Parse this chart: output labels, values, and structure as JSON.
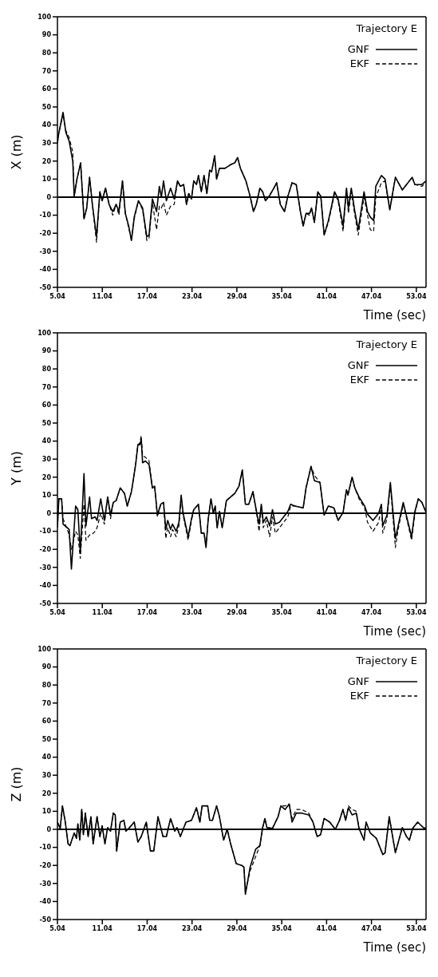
{
  "chart_data": [
    {
      "type": "line",
      "legend_title": "Trajectory E",
      "xlabel": "Time (sec)",
      "ylabel": "X (m)",
      "legend": "top right",
      "marker": "none",
      "xlim": [
        5.04,
        54.34
      ],
      "ylim": [
        -50,
        100
      ],
      "xticks": [
        5.04,
        11.04,
        17.04,
        23.04,
        29.04,
        35.04,
        41.04,
        47.04,
        53.04
      ],
      "yticks": [
        -50,
        -40,
        -30,
        -20,
        -10,
        0,
        10,
        20,
        30,
        40,
        50,
        60,
        70,
        80,
        90,
        100
      ],
      "ref_lines": [
        {
          "axis": "y",
          "value": 0,
          "color": "#000000"
        }
      ],
      "x": [
        5.04,
        5.2,
        5.79,
        6.16,
        6.61,
        7.09,
        7.28,
        7.65,
        8.14,
        8.59,
        8.96,
        9.34,
        9.71,
        10.27,
        10.72,
        11.02,
        11.47,
        11.95,
        12.44,
        12.89,
        13.26,
        13.74,
        14.12,
        14.57,
        14.94,
        15.31,
        15.87,
        16.43,
        16.99,
        17.29,
        17.74,
        18.3,
        18.67,
        18.94,
        19.23,
        19.61,
        20.17,
        20.66,
        21.1,
        21.48,
        21.92,
        22.3,
        22.6,
        22.97,
        23.27,
        23.64,
        23.9,
        24.28,
        24.65,
        25.03,
        25.4,
        25.66,
        26.07,
        26.33,
        26.71,
        27.45,
        28.2,
        28.76,
        29.13,
        29.51,
        30.25,
        30.81,
        31.26,
        31.63,
        32.12,
        32.49,
        32.86,
        33.43,
        33.99,
        34.36,
        34.85,
        35.41,
        35.86,
        36.42,
        36.98,
        37.54,
        37.91,
        38.29,
        38.77,
        39.03,
        39.41,
        39.86,
        40.27,
        40.71,
        41.28,
        41.65,
        42.1,
        42.58,
        43.25,
        43.7,
        43.96,
        44.34,
        44.82,
        45.27,
        46.05,
        46.51,
        46.88,
        47.33,
        47.62,
        48.37,
        48.86,
        49.49,
        50.24,
        51.17,
        52.48,
        52.85,
        53.79,
        54.34
      ],
      "series": [
        {
          "name": "GNF",
          "color": "#000000",
          "line_style": "solid",
          "values": [
            30,
            35,
            47,
            36,
            31,
            20,
            0.5,
            10,
            19,
            -12,
            -6,
            11,
            -4,
            -22,
            3,
            -2,
            5,
            -4,
            -8,
            -4,
            -8,
            9,
            -9,
            -16,
            -24,
            -11,
            -2,
            -6,
            -22,
            -21,
            -1,
            -8,
            6,
            0,
            9,
            -2,
            5,
            -1,
            9,
            6,
            7,
            -4,
            2,
            -1,
            9,
            7,
            12,
            3,
            12,
            2,
            15,
            14,
            23,
            10,
            16,
            16,
            18,
            19,
            22,
            16,
            9,
            0.5,
            -8,
            -4,
            5,
            3,
            -2,
            1,
            5,
            8,
            -4,
            -8,
            0.5,
            8,
            7,
            -8,
            -16,
            -9,
            -9,
            -6,
            -14,
            3,
            0.5,
            -21,
            -13,
            -6,
            3,
            -1,
            -16,
            5,
            -6,
            5,
            -8,
            -18,
            3,
            -8,
            -11,
            -13,
            6,
            12,
            10,
            -7,
            11,
            4,
            11,
            7,
            7,
            9
          ]
        },
        {
          "name": "EKF",
          "color": "#000000",
          "line_style": "dashed",
          "values": [
            30,
            35,
            46,
            37,
            33,
            25,
            0.5,
            10,
            19,
            -12,
            -6,
            11,
            -4,
            -25,
            3,
            -2,
            5,
            -4,
            -10,
            -4,
            -10,
            9,
            -9,
            -17,
            -24,
            -12,
            -2,
            -7,
            -24,
            -23,
            -3,
            -18,
            -5,
            -6,
            -3,
            -10,
            -5,
            -4,
            9,
            6,
            7,
            -4,
            2,
            -1,
            9,
            7,
            12,
            3,
            12,
            2,
            15,
            14,
            23,
            10,
            16,
            16,
            18,
            19,
            22,
            16,
            9,
            0.5,
            -8,
            -4,
            5,
            3,
            -2,
            1,
            5,
            8,
            -4,
            -8,
            0.5,
            8,
            7,
            -8,
            -16,
            -9,
            -10,
            -6,
            -14,
            3,
            0.5,
            -21,
            -14,
            -7,
            2,
            -2,
            -19,
            4,
            -9,
            3,
            -10,
            -21,
            0,
            -10,
            -18,
            -19,
            0,
            8,
            9,
            -7,
            11,
            4,
            11,
            7,
            6,
            8
          ]
        }
      ]
    },
    {
      "type": "line",
      "legend_title": "Trajectory E",
      "xlabel": "Time (sec)",
      "ylabel": "Y (m)",
      "legend": "top right",
      "marker": "none",
      "xlim": [
        5.04,
        54.34
      ],
      "ylim": [
        -50,
        100
      ],
      "xticks": [
        5.04,
        11.04,
        17.04,
        23.04,
        29.04,
        35.04,
        41.04,
        47.04,
        53.04
      ],
      "yticks": [
        -50,
        -40,
        -30,
        -20,
        -10,
        0,
        10,
        20,
        30,
        40,
        50,
        60,
        70,
        80,
        90,
        100
      ],
      "ref_lines": [
        {
          "axis": "y",
          "value": 0,
          "color": "#000000"
        }
      ],
      "x": [
        5.04,
        5.23,
        5.6,
        5.79,
        6.35,
        6.61,
        6.91,
        7.47,
        7.77,
        8.1,
        8.59,
        8.85,
        9.34,
        9.6,
        10.08,
        10.34,
        10.83,
        11.32,
        11.76,
        12.14,
        12.51,
        12.89,
        13.44,
        14.01,
        14.38,
        14.94,
        15.5,
        15.8,
        16.06,
        16.25,
        16.43,
        16.81,
        17.29,
        17.74,
        18.04,
        18.41,
        18.86,
        19.23,
        19.53,
        19.79,
        20.17,
        20.43,
        20.92,
        21.29,
        21.59,
        21.85,
        22.52,
        22.97,
        23.27,
        23.9,
        24.28,
        24.65,
        24.91,
        25.21,
        25.58,
        25.88,
        26.14,
        26.41,
        26.71,
        27.08,
        27.64,
        28.2,
        28.76,
        29.32,
        29.77,
        30.18,
        30.63,
        31.19,
        31.75,
        32.01,
        32.31,
        32.57,
        32.98,
        33.43,
        33.8,
        34.18,
        34.74,
        35.86,
        36.23,
        36.79,
        37.91,
        38.29,
        38.96,
        39.41,
        40.16,
        40.71,
        41.28,
        42.02,
        42.58,
        43.25,
        43.7,
        43.89,
        44.45,
        44.82,
        45.38,
        46.13,
        46.51,
        47.25,
        48.0,
        48.37,
        48.56,
        49.12,
        49.57,
        50.24,
        50.61,
        51.29,
        51.81,
        52.41,
        52.85,
        53.3,
        53.79,
        54.34
      ],
      "series": [
        {
          "name": "GNF",
          "color": "#000000",
          "line_style": "solid",
          "values": [
            -8,
            8,
            8,
            -6,
            -8,
            -9,
            -31,
            4,
            2,
            -22,
            22,
            -7,
            9,
            -3,
            -2,
            -4,
            8,
            -4,
            9,
            -1,
            6,
            7,
            14,
            11,
            4,
            12,
            27,
            38,
            38,
            41,
            28,
            29,
            27,
            14,
            15,
            -1,
            5,
            6,
            -9,
            -4,
            -9,
            -6,
            -10,
            -5,
            10,
            0,
            -13,
            -3,
            2,
            5,
            -11,
            -11,
            -19,
            -3,
            8,
            0,
            4,
            -8,
            1,
            -8,
            7,
            9,
            11,
            15,
            24,
            5,
            5,
            12,
            -1,
            -6,
            5,
            -5,
            -2,
            -7,
            2,
            -6,
            -5,
            1,
            5,
            4,
            3,
            14,
            26,
            18,
            17,
            -1,
            4,
            3,
            -4,
            0.5,
            13,
            10,
            20,
            14,
            9,
            4,
            -0.5,
            -4,
            0,
            5,
            -7,
            -1,
            17,
            -14,
            -7,
            6,
            -3,
            -13,
            1,
            8,
            6,
            0.5
          ]
        },
        {
          "name": "EKF",
          "color": "#000000",
          "line_style": "dashed",
          "values": [
            -8,
            8,
            8,
            -3,
            -9,
            -12,
            -20,
            -10,
            -12,
            -25,
            5,
            -15,
            -12,
            -12,
            -10,
            -8,
            0,
            -6,
            9,
            -3,
            6,
            7,
            14,
            11,
            4,
            12,
            27,
            38,
            39,
            43,
            32,
            31,
            29,
            14,
            15,
            -2,
            5,
            6,
            -14,
            -8,
            -13,
            -9,
            -13,
            -7,
            9,
            -1,
            -15,
            -4,
            2,
            5,
            -11,
            -11,
            -19,
            -3,
            8,
            0,
            4,
            -8,
            1,
            -8,
            7,
            9,
            11,
            15,
            24,
            5,
            5,
            12,
            -2,
            -10,
            4,
            -8,
            -4,
            -13,
            -2,
            -11,
            -8,
            -2,
            4,
            4,
            3,
            14,
            26,
            21,
            17,
            -1,
            4,
            3,
            -4,
            0.5,
            13,
            10,
            20,
            14,
            8,
            3,
            -5,
            -10,
            -5,
            4,
            -11,
            -3,
            16,
            -19,
            -9,
            5,
            -4,
            -15,
            0,
            8,
            6,
            0.5
          ]
        }
      ]
    },
    {
      "type": "line",
      "legend_title": "Trajectory E",
      "xlabel": "Time (sec)",
      "ylabel": "Z (m)",
      "legend": "top right",
      "marker": "none",
      "xlim": [
        5.04,
        54.34
      ],
      "ylim": [
        -50,
        100
      ],
      "xticks": [
        5.04,
        11.04,
        17.04,
        23.04,
        29.04,
        35.04,
        41.04,
        47.04,
        53.04
      ],
      "yticks": [
        -50,
        -40,
        -30,
        -20,
        -10,
        0,
        10,
        20,
        30,
        40,
        50,
        60,
        70,
        80,
        90,
        100
      ],
      "ref_lines": [
        {
          "axis": "y",
          "value": 0,
          "color": "#000000"
        }
      ],
      "x": [
        5.04,
        5.41,
        5.71,
        6.09,
        6.46,
        6.72,
        7.28,
        7.58,
        7.77,
        8.03,
        8.29,
        8.51,
        8.77,
        9.15,
        9.52,
        9.82,
        10.34,
        10.72,
        11.02,
        11.39,
        11.76,
        12.14,
        12.51,
        12.77,
        12.96,
        13.44,
        13.93,
        14.19,
        14.68,
        15.31,
        15.8,
        16.25,
        16.92,
        17.48,
        17.93,
        18.49,
        19.16,
        19.61,
        20.17,
        20.73,
        21.03,
        21.48,
        22.23,
        22.97,
        23.64,
        24.09,
        24.39,
        25.14,
        25.4,
        25.77,
        26.33,
        26.71,
        27.27,
        27.75,
        28.2,
        28.95,
        29.69,
        29.99,
        30.18,
        30.81,
        31.56,
        32.12,
        32.49,
        32.79,
        33.05,
        33.8,
        34.55,
        34.92,
        35.48,
        36.04,
        36.42,
        36.98,
        37.72,
        38.66,
        39.22,
        39.78,
        40.23,
        40.71,
        41.46,
        42.21,
        42.77,
        43.22,
        43.59,
        43.96,
        44.45,
        45.01,
        45.38,
        46.05,
        46.32,
        46.88,
        47.7,
        48.56,
        48.86,
        49.42,
        50.24,
        51.17,
        51.73,
        52.11,
        52.55,
        53.22,
        53.97,
        54.34
      ],
      "series": [
        {
          "name": "GNF",
          "color": "#000000",
          "line_style": "solid",
          "values": [
            4,
            0.5,
            13,
            4,
            -8,
            -9,
            -2,
            -5,
            3,
            -6,
            11,
            -3,
            9,
            -4,
            7,
            -8,
            7,
            -4,
            2,
            -8,
            1,
            -1,
            9,
            8,
            -12,
            4,
            5,
            -1,
            1,
            4,
            -7,
            -4,
            4,
            -12,
            -12,
            7,
            -4,
            -4,
            6,
            -1,
            1,
            -4,
            4,
            5,
            12,
            4,
            13,
            13,
            5,
            5,
            13,
            7,
            -6,
            0,
            -8,
            -19,
            -20,
            -21,
            -36,
            -21,
            -11,
            -9,
            1,
            6,
            1,
            0.5,
            7,
            13,
            11,
            14,
            4,
            9,
            9,
            8,
            4,
            -4,
            -3,
            6,
            4,
            0,
            5,
            11,
            5,
            12,
            8,
            9,
            0.5,
            -6,
            4,
            -2,
            -5,
            -14,
            -13,
            7,
            -13,
            1,
            -4,
            -6,
            0.5,
            4,
            1,
            0.5
          ]
        },
        {
          "name": "EKF",
          "color": "#000000",
          "line_style": "dashed",
          "values": [
            4,
            0.5,
            13,
            4,
            -8,
            -9,
            -2,
            -5,
            3,
            -6,
            11,
            -3,
            9,
            -4,
            7,
            -8,
            7,
            -4,
            2,
            -8,
            1,
            -1,
            9,
            8,
            -12,
            4,
            5,
            -1,
            1,
            4,
            -7,
            -4,
            4,
            -12,
            -12,
            7,
            -4,
            -4,
            6,
            -1,
            1,
            -4,
            4,
            5,
            12,
            4,
            13,
            13,
            5,
            5,
            13,
            7,
            -6,
            0,
            -8,
            -19,
            -20,
            -21,
            -35,
            -23,
            -15,
            -9,
            1,
            6,
            1,
            0.5,
            7,
            13,
            13,
            14,
            6,
            11,
            11,
            9,
            4,
            -4,
            -3,
            6,
            4,
            0,
            5,
            11,
            5,
            13,
            11,
            10,
            0.5,
            -6,
            4,
            -2,
            -5,
            -14,
            -13,
            7,
            -13,
            1,
            -4,
            -6,
            0.5,
            4,
            1,
            0.5
          ]
        }
      ]
    }
  ]
}
